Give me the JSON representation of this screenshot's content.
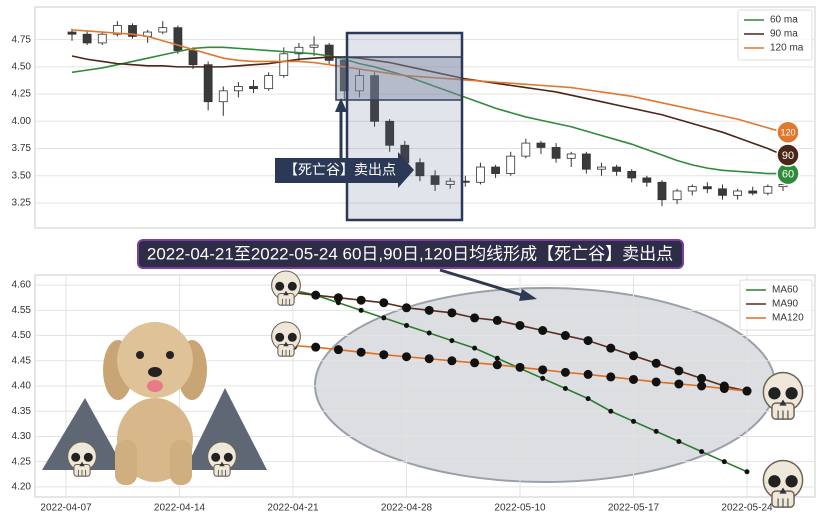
{
  "headline": "2022-04-21至2022-05-24 60日,90日,120日均线形成【死亡谷】卖出点",
  "chart_data": [
    {
      "type": "candlestick",
      "open": [
        4.82,
        4.8,
        4.72,
        4.8,
        4.88,
        4.78,
        4.82,
        4.86,
        4.65,
        4.52,
        4.18,
        4.28,
        4.32,
        4.3,
        4.42,
        4.62,
        4.68,
        4.7,
        4.56,
        4.28,
        4.42,
        4.0,
        3.78,
        3.62,
        3.5,
        3.42,
        3.45,
        3.44,
        3.58,
        3.52,
        3.68,
        3.8,
        3.76,
        3.66,
        3.7,
        3.56,
        3.58,
        3.54,
        3.48,
        3.44,
        3.28,
        3.36,
        3.4,
        3.38,
        3.32,
        3.36,
        3.34,
        3.4
      ],
      "high": [
        4.85,
        4.83,
        4.82,
        4.92,
        4.9,
        4.84,
        4.92,
        4.88,
        4.68,
        4.55,
        4.32,
        4.36,
        4.38,
        4.45,
        4.68,
        4.72,
        4.78,
        4.72,
        4.6,
        4.48,
        4.45,
        4.02,
        3.82,
        3.66,
        3.55,
        3.48,
        3.5,
        3.62,
        3.6,
        3.72,
        3.84,
        3.82,
        3.8,
        3.72,
        3.72,
        3.62,
        3.6,
        3.56,
        3.5,
        3.46,
        3.38,
        3.42,
        3.44,
        3.42,
        3.38,
        3.4,
        3.42,
        3.45
      ],
      "low": [
        4.74,
        4.7,
        4.7,
        4.78,
        4.76,
        4.72,
        4.8,
        4.62,
        4.48,
        4.1,
        4.05,
        4.22,
        4.26,
        4.28,
        4.4,
        4.55,
        4.6,
        4.52,
        4.2,
        4.22,
        3.95,
        3.72,
        3.58,
        3.45,
        3.36,
        3.38,
        3.4,
        3.42,
        3.48,
        3.5,
        3.66,
        3.7,
        3.62,
        3.58,
        3.52,
        3.5,
        3.5,
        3.44,
        3.4,
        3.22,
        3.24,
        3.32,
        3.34,
        3.28,
        3.28,
        3.32,
        3.32,
        3.36
      ],
      "close": [
        4.8,
        4.72,
        4.8,
        4.88,
        4.78,
        4.82,
        4.86,
        4.65,
        4.52,
        4.18,
        4.28,
        4.32,
        4.3,
        4.42,
        4.62,
        4.68,
        4.7,
        4.56,
        4.28,
        4.42,
        4.0,
        3.78,
        3.62,
        3.5,
        3.42,
        3.45,
        3.44,
        3.58,
        3.52,
        3.68,
        3.8,
        3.76,
        3.66,
        3.7,
        3.56,
        3.58,
        3.54,
        3.48,
        3.44,
        3.28,
        3.36,
        3.4,
        3.38,
        3.32,
        3.36,
        3.34,
        3.4,
        3.42
      ],
      "up_color": "#ffffff",
      "down_color": "#3a3a3a",
      "series": [
        {
          "name": "60 ma",
          "end_label": "60",
          "color": "#2e8b3a",
          "values": [
            4.45,
            4.47,
            4.49,
            4.52,
            4.55,
            4.58,
            4.61,
            4.64,
            4.67,
            4.68,
            4.68,
            4.67,
            4.66,
            4.65,
            4.64,
            4.63,
            4.62,
            4.6,
            4.57,
            4.53,
            4.5,
            4.46,
            4.42,
            4.37,
            4.32,
            4.27,
            4.22,
            4.17,
            4.12,
            4.08,
            4.04,
            4.01,
            3.98,
            3.95,
            3.91,
            3.87,
            3.83,
            3.79,
            3.74,
            3.69,
            3.64,
            3.6,
            3.57,
            3.55,
            3.54,
            3.53,
            3.52,
            3.52
          ]
        },
        {
          "name": "90 ma",
          "end_label": "90",
          "color": "#4a2616",
          "values": [
            4.6,
            4.57,
            4.55,
            4.53,
            4.52,
            4.51,
            4.51,
            4.5,
            4.5,
            4.5,
            4.5,
            4.51,
            4.52,
            4.53,
            4.55,
            4.57,
            4.58,
            4.59,
            4.59,
            4.58,
            4.56,
            4.54,
            4.51,
            4.48,
            4.45,
            4.42,
            4.39,
            4.37,
            4.35,
            4.33,
            4.31,
            4.29,
            4.27,
            4.24,
            4.21,
            4.18,
            4.15,
            4.12,
            4.09,
            4.06,
            4.02,
            3.98,
            3.94,
            3.9,
            3.85,
            3.8,
            3.75,
            3.69
          ]
        },
        {
          "name": "120 ma",
          "end_label": "120",
          "color": "#e0782e",
          "values": [
            4.84,
            4.83,
            4.82,
            4.81,
            4.8,
            4.78,
            4.74,
            4.7,
            4.66,
            4.62,
            4.58,
            4.56,
            4.55,
            4.55,
            4.55,
            4.55,
            4.54,
            4.52,
            4.5,
            4.48,
            4.46,
            4.44,
            4.42,
            4.41,
            4.4,
            4.39,
            4.38,
            4.37,
            4.36,
            4.35,
            4.34,
            4.33,
            4.32,
            4.31,
            4.29,
            4.27,
            4.25,
            4.23,
            4.2,
            4.17,
            4.14,
            4.11,
            4.08,
            4.05,
            4.02,
            3.98,
            3.94,
            3.9
          ]
        }
      ],
      "ylim": [
        3.02,
        5.05
      ],
      "yticks": [
        3.25,
        {
          "value": 3.5,
          "label": "3.50"
        },
        3.75,
        {
          "value": 4,
          "label": "4.00"
        },
        4.25,
        {
          "value": 4.5,
          "label": "4.50"
        },
        4.75
      ],
      "grid": true,
      "legend": "upper right",
      "annotation": "【死亡谷】卖出点"
    },
    {
      "type": "line",
      "categories": [
        "2022-04-07",
        null,
        null,
        null,
        null,
        "2022-04-14",
        null,
        null,
        null,
        null,
        "2022-04-21",
        null,
        null,
        null,
        null,
        "2022-04-28",
        null,
        null,
        null,
        null,
        "2022-05-10",
        null,
        null,
        null,
        null,
        "2022-05-17",
        null,
        null,
        null,
        null,
        "2022-05-24"
      ],
      "series": [
        {
          "name": "MA60",
          "color": "#2e7d32",
          "marker_size": 2.5,
          "values": [
            null,
            null,
            null,
            null,
            null,
            null,
            null,
            null,
            null,
            null,
            4.59,
            4.58,
            4.565,
            4.55,
            4.535,
            4.52,
            4.505,
            4.49,
            4.475,
            4.455,
            4.435,
            4.415,
            4.395,
            4.375,
            4.35,
            4.33,
            4.31,
            4.29,
            4.27,
            4.25,
            4.23
          ]
        },
        {
          "name": "MA90",
          "color": "#5a2e1e",
          "marker_size": 4.5,
          "values": [
            null,
            null,
            null,
            null,
            null,
            null,
            null,
            null,
            null,
            null,
            4.585,
            4.58,
            4.575,
            4.57,
            4.565,
            4.555,
            4.55,
            4.545,
            4.535,
            4.53,
            4.52,
            4.51,
            4.5,
            4.49,
            4.475,
            4.46,
            4.445,
            4.43,
            4.415,
            4.4,
            4.39
          ]
        },
        {
          "name": "MA120",
          "color": "#e07020",
          "marker_size": 4.5,
          "values": [
            null,
            null,
            null,
            null,
            null,
            null,
            null,
            null,
            null,
            null,
            4.48,
            4.477,
            4.472,
            4.467,
            4.462,
            4.458,
            4.454,
            4.45,
            4.446,
            4.442,
            4.437,
            4.432,
            4.427,
            4.423,
            4.418,
            4.413,
            4.408,
            4.404,
            4.4,
            4.395,
            4.39
          ]
        }
      ],
      "ylim": [
        4.18,
        4.62
      ],
      "yticks": [
        {
          "value": 4.2,
          "label": "4.20"
        },
        4.25,
        {
          "value": 4.3,
          "label": "4.30"
        },
        4.35,
        {
          "value": 4.4,
          "label": "4.40"
        },
        4.45,
        {
          "value": 4.5,
          "label": "4.50"
        },
        4.55,
        {
          "value": 4.6,
          "label": "4.60"
        }
      ],
      "grid": true,
      "legend": "upper right"
    }
  ]
}
